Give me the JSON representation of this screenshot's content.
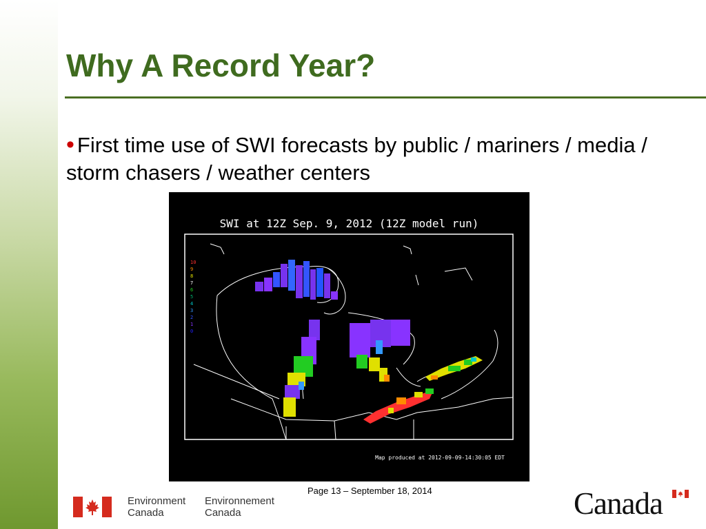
{
  "slide": {
    "title": "Why A Record Year?",
    "bullet": "First time use of SWI forecasts by public / mariners / media / storm chasers / weather centers",
    "page_label": "Page 13 – September 18, 2014"
  },
  "map": {
    "title": "SWI at 12Z Sep.  9, 2012 (12Z model run)",
    "stamp": "Map produced at 2012-09-09-14:30:05 EDT",
    "scale": [
      {
        "value": "10",
        "color": "#ff3030"
      },
      {
        "value": "9",
        "color": "#ff8c00"
      },
      {
        "value": "8",
        "color": "#e0e000"
      },
      {
        "value": "7",
        "color": "#ffffff"
      },
      {
        "value": "6",
        "color": "#22cc22"
      },
      {
        "value": "5",
        "color": "#00b070"
      },
      {
        "value": "4",
        "color": "#00c8c8"
      },
      {
        "value": "3",
        "color": "#3399ff"
      },
      {
        "value": "2",
        "color": "#3355ff"
      },
      {
        "value": "1",
        "color": "#8833ff"
      },
      {
        "value": "0",
        "color": "#2222ff"
      }
    ]
  },
  "footer": {
    "dept_en_line1": "Environment",
    "dept_en_line2": "Canada",
    "dept_fr_line1": "Environnement",
    "dept_fr_line2": "Canada",
    "wordmark": "Canada",
    "flag_icon": "maple-leaf-flag-icon"
  },
  "colors": {
    "title": "#3f6b1f",
    "rule": "#4a6e22",
    "bullet": "#cc0000",
    "flag_red": "#d52b1e"
  }
}
